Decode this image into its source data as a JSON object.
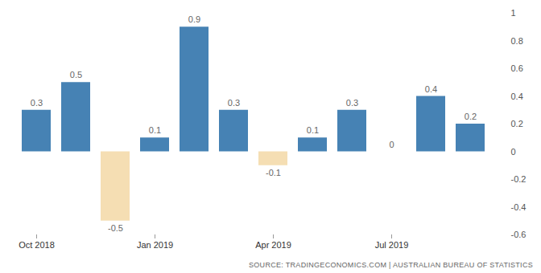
{
  "chart_data": {
    "type": "bar",
    "caption": "SOURCE: TRADINGECONOMICS.COM | AUSTRALIAN BUREAU OF STATISTICS",
    "categories": [
      "Oct 2018",
      null,
      null,
      "Jan 2019",
      null,
      null,
      "Apr 2019",
      null,
      null,
      "Jul 2019",
      null,
      null
    ],
    "values": [
      0.3,
      0.5,
      -0.5,
      0.1,
      0.9,
      0.3,
      -0.1,
      0.1,
      0.3,
      0,
      0.4,
      0.2
    ],
    "colors": [
      "#4682b4",
      "#4682b4",
      "#f5deb3",
      "#4682b4",
      "#4682b4",
      "#4682b4",
      "#f5deb3",
      "#4682b4",
      "#4682b4",
      "#4682b4",
      "#4682b4",
      "#4682b4"
    ],
    "ylim": [
      -0.6,
      1
    ],
    "yticks": [
      -0.6,
      -0.4,
      -0.2,
      0,
      0.2,
      0.4,
      0.6,
      0.8,
      1
    ],
    "grid": false,
    "data_labels": true
  }
}
